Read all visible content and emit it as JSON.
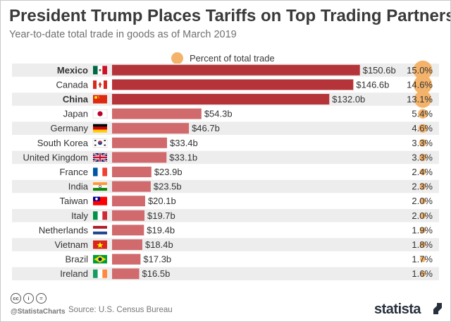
{
  "title": "President Trump Places Tariffs on Top Trading Partners",
  "subtitle": "Year-to-date total trade in goods as of March 2019",
  "legend": {
    "label": "Percent of total trade"
  },
  "footer": {
    "cc_badges": [
      "cc",
      "i",
      "="
    ],
    "handle": "@StatistaCharts",
    "source": "Source: U.S. Census Bureau",
    "logo": "statista"
  },
  "colors": {
    "bar_highlight": "#b5343a",
    "bar_normal": "#d06a6d",
    "bubble": "#f4b36b",
    "row_stripe": "#ededed"
  },
  "chart_data": {
    "type": "bar",
    "orientation": "horizontal",
    "title": "President Trump Places Tariffs on Top Trading Partners",
    "subtitle": "Year-to-date total trade in goods as of March 2019",
    "unit": "billion USD",
    "secondary_unit": "percent of total trade",
    "legend_position": "top",
    "xlim": [
      0,
      155
    ],
    "categories": [
      "Mexico",
      "Canada",
      "China",
      "Japan",
      "Germany",
      "South Korea",
      "United Kingdom",
      "France",
      "India",
      "Taiwan",
      "Italy",
      "Netherlands",
      "Vietnam",
      "Brazil",
      "Ireland"
    ],
    "values": [
      150.6,
      146.6,
      132.0,
      54.3,
      46.7,
      33.4,
      33.1,
      23.9,
      23.5,
      20.1,
      19.7,
      19.4,
      18.4,
      17.3,
      16.5
    ],
    "value_labels": [
      "$150.6b",
      "$146.6b",
      "$132.0b",
      "$54.3b",
      "$46.7b",
      "$33.4b",
      "$33.1b",
      "$23.9b",
      "$23.5b",
      "$20.1b",
      "$19.7b",
      "$19.4b",
      "$18.4b",
      "$17.3b",
      "$16.5b"
    ],
    "percent": [
      15.0,
      14.6,
      13.1,
      5.4,
      4.6,
      3.3,
      3.3,
      2.4,
      2.3,
      2.0,
      2.0,
      1.9,
      1.8,
      1.7,
      1.6
    ],
    "percent_labels": [
      "15.0%",
      "14.6%",
      "13.1%",
      "5.4%",
      "4.6%",
      "3.3%",
      "3.3%",
      "2.4%",
      "2.3%",
      "2.0%",
      "2.0%",
      "1.9%",
      "1.8%",
      "1.7%",
      "1.6%"
    ],
    "highlighted": [
      "Mexico",
      "Canada",
      "China"
    ],
    "tariffed_bold": [
      "Mexico",
      "China"
    ],
    "flags": [
      "mexico-flag",
      "canada-flag",
      "china-flag",
      "japan-flag",
      "germany-flag",
      "south-korea-flag",
      "united-kingdom-flag",
      "france-flag",
      "india-flag",
      "taiwan-flag",
      "italy-flag",
      "netherlands-flag",
      "vietnam-flag",
      "brazil-flag",
      "ireland-flag"
    ]
  }
}
